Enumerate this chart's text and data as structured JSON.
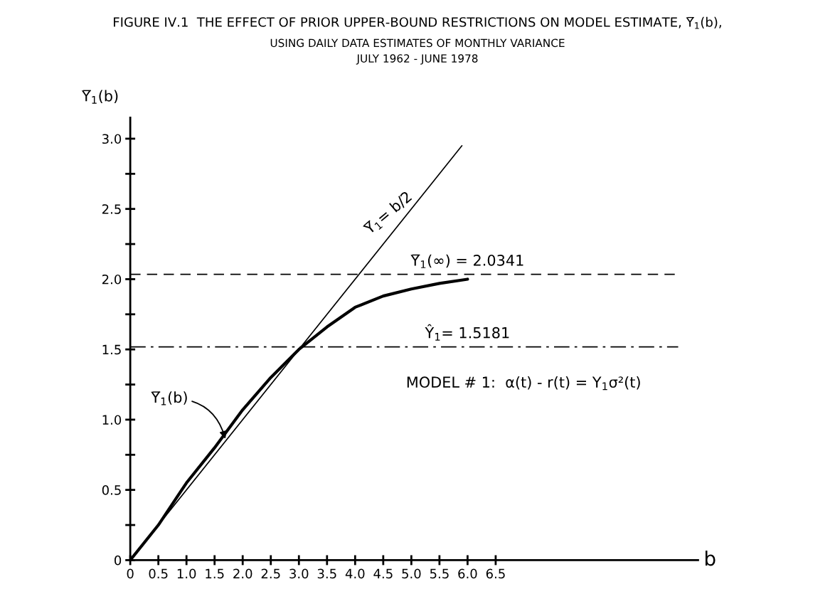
{
  "chart_data": {
    "type": "line",
    "title": "FIGURE IV.1  THE EFFECT OF PRIOR UPPER-BOUND RESTRICTIONS ON MODEL ESTIMATE, Y̅$_{1}$(b),",
    "subtitle": "USING DAILY DATA ESTIMATES OF MONTHLY VARIANCE\nJULY 1962 - JUNE 1978",
    "xlabel": "b",
    "ylabel": "Y̅$_{1}$(b)",
    "series": [
      {
        "x": [
          0,
          0.5,
          1.0,
          1.5,
          2.0,
          2.5,
          3.0,
          3.5,
          4.0,
          4.5,
          5.0,
          5.5,
          6.0
        ],
        "values": [
          0,
          0.25,
          0.55,
          0.8,
          1.07,
          1.3,
          1.5,
          1.66,
          1.8,
          1.88,
          1.93,
          1.97,
          2.0
        ],
        "color": "#000000"
      },
      {
        "x": [
          0,
          5.9
        ],
        "values": [
          0,
          2.95
        ],
        "color": "#000000"
      }
    ],
    "xlim": [
      0,
      10.1
    ],
    "xticks": [
      0,
      0.5,
      {
        "value": 1,
        "label": "1.0"
      },
      1.5,
      {
        "value": 2,
        "label": "2.0"
      },
      2.5,
      {
        "value": 3,
        "label": "3.0"
      },
      3.5,
      {
        "value": 4,
        "label": "4.0"
      },
      4.5,
      {
        "value": 5,
        "label": "5.0"
      },
      5.5,
      {
        "value": 6,
        "label": "6.0"
      },
      6.5
    ],
    "ylim": [
      0,
      3.15
    ],
    "yticks": [
      0,
      {
        "value": 0.25,
        "label": null
      },
      0.5,
      {
        "value": 0.75,
        "label": null
      },
      {
        "value": 1,
        "label": "1.0"
      },
      {
        "value": 1.25,
        "label": null
      },
      1.5,
      {
        "value": 1.75,
        "label": null
      },
      {
        "value": 2,
        "label": "2.0"
      },
      {
        "value": 2.25,
        "label": null
      },
      2.5,
      {
        "value": 2.75,
        "label": null
      },
      {
        "value": 3,
        "label": "3.0"
      }
    ],
    "ref_lines": [
      {
        "axis": "y",
        "value": 2.0341,
        "label": "Y̅$_{1}$(∞) = 2.0341",
        "line_style": "dashed",
        "color": "#000000"
      },
      {
        "axis": "y",
        "value": 1.5181,
        "label": "Ŷ$_{1}$= 1.5181",
        "line_style": "dashdot",
        "color": "#000000"
      }
    ],
    "annotations": [
      {
        "text": "Y̅$_{1}$= b/2",
        "x": 4.6,
        "y": 2.3
      },
      {
        "text": "Y̅$_{1}$(b)",
        "x": 1.7,
        "y": 0.85
      },
      "MODEL # 1:  α(t) - r(t) = Y$_{1}$σ²(t)"
    ],
    "grid": false,
    "legend": false,
    "marker": "none",
    "line_style": "solid"
  }
}
